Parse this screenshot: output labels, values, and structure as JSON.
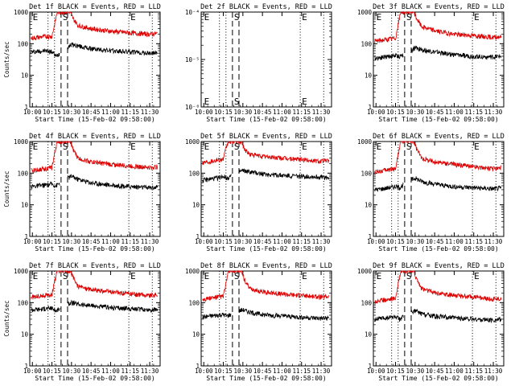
{
  "chart_data": [
    {
      "type": "line",
      "title": "Det 1f BLACK = Events, RED = LLD",
      "xlabel": "Start Time (15-Feb-02 09:58:00)",
      "ylabel": "Counts/sec",
      "yscale": "log",
      "ylim": [
        1,
        1000
      ],
      "y_ticks": [
        "1",
        "10",
        "100",
        "1000"
      ],
      "x_ticks": [
        "10:00",
        "10:15",
        "10:30",
        "10:45",
        "11:00",
        "11:15",
        "11:30"
      ],
      "xlim": [
        "09:58",
        "11:38"
      ],
      "markers": [
        {
          "label": "E",
          "x": "09:59"
        },
        {
          "label": "S",
          "x": "10:22"
        },
        {
          "label": "E",
          "x": "11:14"
        }
      ],
      "dotted_lines": [
        "10:12",
        "10:17",
        "11:14",
        "11:32"
      ],
      "dashed_lines": [
        "10:22",
        "10:27"
      ],
      "series": [
        {
          "name": "Events",
          "color": "#000000",
          "x": [
            "09:59",
            "10:05",
            "10:10",
            "10:15",
            "10:18",
            "10:27",
            "10:30",
            "10:35",
            "10:45",
            "11:00",
            "11:15",
            "11:30",
            "11:36"
          ],
          "y": [
            55,
            58,
            60,
            56,
            40,
            80,
            95,
            85,
            70,
            60,
            55,
            50,
            52
          ]
        },
        {
          "name": "LLD",
          "color": "#dd0000",
          "x": [
            "09:59",
            "10:05",
            "10:10",
            "10:15",
            "10:17",
            "10:19",
            "10:29",
            "10:31",
            "10:35",
            "10:45",
            "11:00",
            "11:15",
            "11:30",
            "11:36"
          ],
          "y": [
            150,
            160,
            170,
            170,
            400,
            1000,
            1000,
            650,
            380,
            300,
            250,
            220,
            200,
            210
          ]
        }
      ]
    },
    {
      "type": "line",
      "title": "Det 2f BLACK = Events, RED = LLD",
      "xlabel": "Start Time (15-Feb-02 09:58:00)",
      "ylabel": "",
      "yscale": "log",
      "ylim": [
        1e-06,
        0.0001
      ],
      "y_ticks": [
        "10⁻⁶",
        "10⁻⁵",
        "10⁻⁴"
      ],
      "x_ticks": [
        "10:00",
        "10:15",
        "10:30",
        "10:45",
        "11:00",
        "11:15",
        "11:30"
      ],
      "xlim": [
        "09:58",
        "11:38"
      ],
      "markers": [
        {
          "label": "E",
          "x": "09:59"
        },
        {
          "label": "S",
          "x": "10:22"
        },
        {
          "label": "E",
          "x": "11:14"
        }
      ],
      "dotted_lines": [
        "10:12",
        "10:17",
        "11:14",
        "11:32"
      ],
      "dashed_lines": [
        "10:22",
        "10:27"
      ],
      "series": []
    },
    {
      "type": "line",
      "title": "Det 3f BLACK = Events, RED = LLD",
      "xlabel": "Start Time (15-Feb-02 09:58:00)",
      "ylabel": "",
      "yscale": "log",
      "ylim": [
        1,
        1000
      ],
      "y_ticks": [
        "1",
        "10",
        "100",
        "1000"
      ],
      "x_ticks": [
        "10:00",
        "10:15",
        "10:30",
        "10:45",
        "11:00",
        "11:15",
        "11:30"
      ],
      "xlim": [
        "09:58",
        "11:38"
      ],
      "markers": [
        {
          "label": "E",
          "x": "09:59"
        },
        {
          "label": "S",
          "x": "10:22"
        },
        {
          "label": "E",
          "x": "11:14"
        }
      ],
      "dotted_lines": [
        "10:12",
        "10:17",
        "11:14",
        "11:32"
      ],
      "dashed_lines": [
        "10:22",
        "10:27"
      ],
      "series": [
        {
          "name": "Events",
          "color": "#000000",
          "x": [
            "09:59",
            "10:05",
            "10:10",
            "10:15",
            "10:18",
            "10:27",
            "10:30",
            "10:35",
            "10:45",
            "11:00",
            "11:15",
            "11:30",
            "11:36"
          ],
          "y": [
            35,
            38,
            40,
            42,
            40,
            60,
            75,
            65,
            55,
            45,
            40,
            38,
            40
          ]
        },
        {
          "name": "LLD",
          "color": "#dd0000",
          "x": [
            "09:59",
            "10:05",
            "10:10",
            "10:15",
            "10:17",
            "10:19",
            "10:29",
            "10:31",
            "10:35",
            "10:45",
            "11:00",
            "11:15",
            "11:30",
            "11:36"
          ],
          "y": [
            120,
            130,
            140,
            150,
            400,
            1000,
            1000,
            650,
            350,
            260,
            200,
            180,
            160,
            170
          ]
        }
      ]
    },
    {
      "type": "line",
      "title": "Det 4f BLACK = Events, RED = LLD",
      "xlabel": "Start Time (15-Feb-02 09:58:00)",
      "ylabel": "Counts/sec",
      "yscale": "log",
      "ylim": [
        1,
        1000
      ],
      "y_ticks": [
        "1",
        "10",
        "100",
        "1000"
      ],
      "x_ticks": [
        "10:00",
        "10:15",
        "10:30",
        "10:45",
        "11:00",
        "11:15",
        "11:30"
      ],
      "xlim": [
        "09:58",
        "11:38"
      ],
      "markers": [
        {
          "label": "E",
          "x": "09:59"
        },
        {
          "label": "S",
          "x": "10:22"
        },
        {
          "label": "E",
          "x": "11:14"
        }
      ],
      "dotted_lines": [
        "10:12",
        "10:17",
        "11:14",
        "11:32"
      ],
      "dashed_lines": [
        "10:22",
        "10:27"
      ],
      "series": [
        {
          "name": "Events",
          "color": "#000000",
          "x": [
            "09:59",
            "10:05",
            "10:10",
            "10:15",
            "10:18",
            "10:27",
            "10:30",
            "10:35",
            "10:45",
            "11:00",
            "11:15",
            "11:30",
            "11:36"
          ],
          "y": [
            38,
            40,
            42,
            45,
            40,
            70,
            80,
            65,
            50,
            42,
            38,
            35,
            36
          ]
        },
        {
          "name": "LLD",
          "color": "#dd0000",
          "x": [
            "09:59",
            "10:05",
            "10:10",
            "10:15",
            "10:17",
            "10:19",
            "10:29",
            "10:31",
            "10:35",
            "10:45",
            "11:00",
            "11:15",
            "11:30",
            "11:36"
          ],
          "y": [
            120,
            130,
            140,
            150,
            400,
            1000,
            1000,
            600,
            300,
            230,
            190,
            170,
            150,
            160
          ]
        }
      ]
    },
    {
      "type": "line",
      "title": "Det 5f BLACK = Events, RED = LLD",
      "xlabel": "Start Time (15-Feb-02 09:58:00)",
      "ylabel": "",
      "yscale": "log",
      "ylim": [
        1,
        1000
      ],
      "y_ticks": [
        "1",
        "10",
        "100",
        "1000"
      ],
      "x_ticks": [
        "10:00",
        "10:15",
        "10:30",
        "10:45",
        "11:00",
        "11:15",
        "11:30"
      ],
      "xlim": [
        "09:58",
        "11:38"
      ],
      "markers": [
        {
          "label": "E",
          "x": "09:59"
        },
        {
          "label": "S",
          "x": "10:22"
        },
        {
          "label": "E",
          "x": "11:14"
        }
      ],
      "dotted_lines": [
        "10:12",
        "10:17",
        "11:14",
        "11:32"
      ],
      "dashed_lines": [
        "10:22",
        "10:27"
      ],
      "series": [
        {
          "name": "Events",
          "color": "#000000",
          "x": [
            "09:59",
            "10:05",
            "10:10",
            "10:15",
            "10:18",
            "10:27",
            "10:30",
            "10:35",
            "10:45",
            "11:00",
            "11:15",
            "11:30",
            "11:36"
          ],
          "y": [
            60,
            65,
            70,
            80,
            70,
            110,
            120,
            110,
            95,
            85,
            80,
            75,
            72
          ]
        },
        {
          "name": "LLD",
          "color": "#dd0000",
          "x": [
            "09:59",
            "10:05",
            "10:10",
            "10:15",
            "10:17",
            "10:19",
            "10:29",
            "10:31",
            "10:35",
            "10:45",
            "11:00",
            "11:15",
            "11:30",
            "11:36"
          ],
          "y": [
            220,
            240,
            260,
            280,
            600,
            1000,
            1000,
            600,
            400,
            340,
            300,
            270,
            240,
            250
          ]
        }
      ]
    },
    {
      "type": "line",
      "title": "Det 6f BLACK = Events, RED = LLD",
      "xlabel": "Start Time (15-Feb-02 09:58:00)",
      "ylabel": "",
      "yscale": "log",
      "ylim": [
        1,
        1000
      ],
      "y_ticks": [
        "1",
        "10",
        "100",
        "1000"
      ],
      "x_ticks": [
        "10:00",
        "10:15",
        "10:30",
        "10:45",
        "11:00",
        "11:15",
        "11:30"
      ],
      "xlim": [
        "09:58",
        "11:38"
      ],
      "markers": [
        {
          "label": "E",
          "x": "09:59"
        },
        {
          "label": "S",
          "x": "10:22"
        },
        {
          "label": "E",
          "x": "11:14"
        }
      ],
      "dotted_lines": [
        "10:12",
        "10:17",
        "11:14",
        "11:32"
      ],
      "dashed_lines": [
        "10:22",
        "10:27"
      ],
      "series": [
        {
          "name": "Events",
          "color": "#000000",
          "x": [
            "09:59",
            "10:05",
            "10:10",
            "10:15",
            "10:18",
            "10:27",
            "10:30",
            "10:35",
            "10:45",
            "11:00",
            "11:15",
            "11:30",
            "11:36"
          ],
          "y": [
            30,
            32,
            35,
            38,
            35,
            60,
            70,
            55,
            45,
            38,
            35,
            32,
            34
          ]
        },
        {
          "name": "LLD",
          "color": "#dd0000",
          "x": [
            "09:59",
            "10:05",
            "10:10",
            "10:15",
            "10:17",
            "10:19",
            "10:29",
            "10:31",
            "10:35",
            "10:45",
            "11:00",
            "11:15",
            "11:30",
            "11:36"
          ],
          "y": [
            110,
            120,
            130,
            140,
            400,
            1000,
            1000,
            600,
            300,
            230,
            190,
            160,
            140,
            150
          ]
        }
      ]
    },
    {
      "type": "line",
      "title": "Det 7f BLACK = Events, RED = LLD",
      "xlabel": "Start Time (15-Feb-02 09:58:00)",
      "ylabel": "Counts/sec",
      "yscale": "log",
      "ylim": [
        1,
        1000
      ],
      "y_ticks": [
        "1",
        "10",
        "100",
        "1000"
      ],
      "x_ticks": [
        "10:00",
        "10:15",
        "10:30",
        "10:45",
        "11:00",
        "11:15",
        "11:30"
      ],
      "xlim": [
        "09:58",
        "11:38"
      ],
      "markers": [
        {
          "label": "E",
          "x": "09:59"
        },
        {
          "label": "S",
          "x": "10:22"
        },
        {
          "label": "E",
          "x": "11:14"
        }
      ],
      "dotted_lines": [
        "10:12",
        "10:17",
        "11:14",
        "11:32"
      ],
      "dashed_lines": [
        "10:22",
        "10:27"
      ],
      "series": [
        {
          "name": "Events",
          "color": "#000000",
          "x": [
            "09:59",
            "10:05",
            "10:10",
            "10:15",
            "10:18",
            "10:27",
            "10:30",
            "10:35",
            "10:45",
            "11:00",
            "11:15",
            "11:30",
            "11:36"
          ],
          "y": [
            60,
            62,
            65,
            68,
            55,
            90,
            100,
            90,
            80,
            70,
            65,
            60,
            62
          ]
        },
        {
          "name": "LLD",
          "color": "#dd0000",
          "x": [
            "09:59",
            "10:05",
            "10:10",
            "10:15",
            "10:17",
            "10:19",
            "10:29",
            "10:31",
            "10:35",
            "10:45",
            "11:00",
            "11:15",
            "11:30",
            "11:36"
          ],
          "y": [
            150,
            160,
            170,
            180,
            450,
            1000,
            1000,
            650,
            330,
            260,
            220,
            190,
            170,
            180
          ]
        }
      ]
    },
    {
      "type": "line",
      "title": "Det 8f BLACK = Events, RED = LLD",
      "xlabel": "Start Time (15-Feb-02 09:58:00)",
      "ylabel": "",
      "yscale": "log",
      "ylim": [
        1,
        1000
      ],
      "y_ticks": [
        "1",
        "10",
        "100",
        "1000"
      ],
      "x_ticks": [
        "10:00",
        "10:15",
        "10:30",
        "10:45",
        "11:00",
        "11:15",
        "11:30"
      ],
      "xlim": [
        "09:58",
        "11:38"
      ],
      "markers": [
        {
          "label": "E",
          "x": "09:59"
        },
        {
          "label": "S",
          "x": "10:22"
        },
        {
          "label": "E",
          "x": "11:14"
        }
      ],
      "dotted_lines": [
        "10:12",
        "10:17",
        "11:14",
        "11:32"
      ],
      "dashed_lines": [
        "10:22",
        "10:27"
      ],
      "series": [
        {
          "name": "Events",
          "color": "#000000",
          "x": [
            "09:59",
            "10:05",
            "10:10",
            "10:15",
            "10:18",
            "10:27",
            "10:30",
            "10:35",
            "10:45",
            "11:00",
            "11:15",
            "11:30",
            "11:36"
          ],
          "y": [
            35,
            38,
            40,
            42,
            38,
            55,
            60,
            50,
            42,
            38,
            35,
            32,
            33
          ]
        },
        {
          "name": "LLD",
          "color": "#dd0000",
          "x": [
            "09:59",
            "10:05",
            "10:10",
            "10:15",
            "10:17",
            "10:19",
            "10:29",
            "10:31",
            "10:35",
            "10:45",
            "11:00",
            "11:15",
            "11:30",
            "11:36"
          ],
          "y": [
            130,
            140,
            150,
            160,
            400,
            1000,
            1000,
            550,
            280,
            220,
            190,
            170,
            150,
            160
          ]
        }
      ]
    },
    {
      "type": "line",
      "title": "Det 9f BLACK = Events, RED = LLD",
      "xlabel": "Start Time (15-Feb-02 09:58:00)",
      "ylabel": "",
      "yscale": "log",
      "ylim": [
        1,
        1000
      ],
      "y_ticks": [
        "1",
        "10",
        "100",
        "1000"
      ],
      "x_ticks": [
        "10:00",
        "10:15",
        "10:30",
        "10:45",
        "11:00",
        "11:15",
        "11:30"
      ],
      "xlim": [
        "09:58",
        "11:38"
      ],
      "markers": [
        {
          "label": "E",
          "x": "09:59"
        },
        {
          "label": "S",
          "x": "10:22"
        },
        {
          "label": "E",
          "x": "11:14"
        }
      ],
      "dotted_lines": [
        "10:12",
        "10:17",
        "11:14",
        "11:32"
      ],
      "dashed_lines": [
        "10:22",
        "10:27"
      ],
      "series": [
        {
          "name": "Events",
          "color": "#000000",
          "x": [
            "09:59",
            "10:05",
            "10:10",
            "10:15",
            "10:18",
            "10:27",
            "10:30",
            "10:35",
            "10:45",
            "11:00",
            "11:15",
            "11:30",
            "11:36"
          ],
          "y": [
            30,
            32,
            34,
            36,
            30,
            50,
            55,
            45,
            38,
            33,
            30,
            28,
            30
          ]
        },
        {
          "name": "LLD",
          "color": "#dd0000",
          "x": [
            "09:59",
            "10:05",
            "10:10",
            "10:15",
            "10:17",
            "10:19",
            "10:29",
            "10:31",
            "10:35",
            "10:45",
            "11:00",
            "11:15",
            "11:30",
            "11:36"
          ],
          "y": [
            110,
            120,
            130,
            140,
            380,
            1000,
            1000,
            600,
            280,
            210,
            170,
            150,
            130,
            140
          ]
        }
      ]
    }
  ]
}
